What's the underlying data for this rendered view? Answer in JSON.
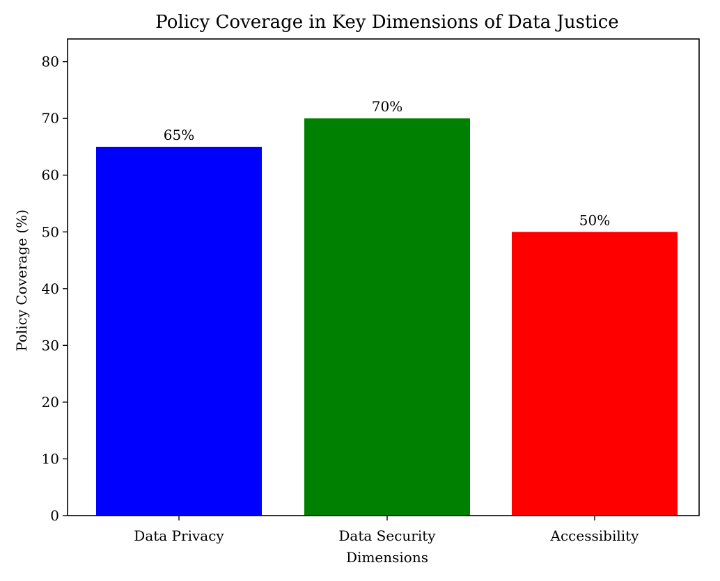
{
  "chart_data": {
    "type": "bar",
    "title": "Policy Coverage in Key Dimensions of Data Justice",
    "xlabel": "Dimensions",
    "ylabel": "Policy Coverage (%)",
    "categories": [
      "Data Privacy",
      "Data Security",
      "Accessibility"
    ],
    "values": [
      65,
      70,
      50
    ],
    "value_labels": [
      "65%",
      "70%",
      "50%"
    ],
    "colors": [
      "#0000ff",
      "#008000",
      "#ff0000"
    ],
    "ylim": [
      0,
      84
    ],
    "yticks": [
      0,
      10,
      20,
      30,
      40,
      50,
      60,
      70,
      80
    ],
    "grid": false,
    "legend": "none"
  }
}
